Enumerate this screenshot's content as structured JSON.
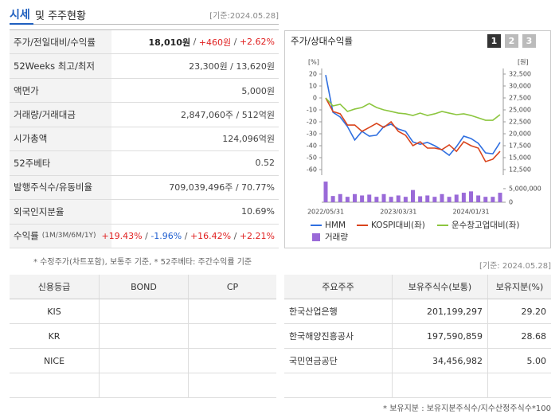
{
  "header": {
    "title": "시세",
    "title_rest": "및 주주현황",
    "date": "[기준:2024.05.28]"
  },
  "summary": {
    "rows": [
      {
        "label": "주가/전일대비/수익률",
        "parts": [
          {
            "text": "18,010원",
            "color": "#222",
            "bold": true
          },
          {
            "text": " / ",
            "color": "#555"
          },
          {
            "text": "+460원",
            "color": "#e02020"
          },
          {
            "text": " / ",
            "color": "#555"
          },
          {
            "text": "+2.62%",
            "color": "#e02020"
          }
        ]
      },
      {
        "label": "52Weeks 최고/최저",
        "parts": [
          {
            "text": "23,300원 / 13,620원",
            "color": "#444"
          }
        ]
      },
      {
        "label": "액면가",
        "parts": [
          {
            "text": "5,000원",
            "color": "#444"
          }
        ]
      },
      {
        "label": "거래량/거래대금",
        "parts": [
          {
            "text": "2,847,060주 / 512억원",
            "color": "#444"
          }
        ]
      },
      {
        "label": "시가총액",
        "parts": [
          {
            "text": "124,096억원",
            "color": "#444"
          }
        ]
      },
      {
        "label": "52주베타",
        "parts": [
          {
            "text": "0.52",
            "color": "#444"
          }
        ]
      },
      {
        "label": "발행주식수/유동비율",
        "parts": [
          {
            "text": "709,039,496주 / 70.77%",
            "color": "#444"
          }
        ]
      },
      {
        "label": "외국인지분율",
        "parts": [
          {
            "text": "10.69%",
            "color": "#444"
          }
        ]
      },
      {
        "label": "수익률",
        "label_note": "(1M/3M/6M/1Y)",
        "parts": [
          {
            "text": "+19.43%",
            "color": "#e02020"
          },
          {
            "text": " / ",
            "color": "#555"
          },
          {
            "text": "-1.96%",
            "color": "#1f5fd0"
          },
          {
            "text": " / ",
            "color": "#555"
          },
          {
            "text": "+16.42%",
            "color": "#e02020"
          },
          {
            "text": " / ",
            "color": "#555"
          },
          {
            "text": "+2.21%",
            "color": "#e02020"
          }
        ]
      }
    ],
    "note": "* 수정주가(차트포함), 보통주 기준, * 52주베타: 주간수익률 기준"
  },
  "chart_data": {
    "type": "line",
    "title": "주가/상대수익률",
    "buttons": [
      "1",
      "2",
      "3"
    ],
    "y_unit": "[%]",
    "y2_unit": "[원]",
    "categories": [
      "2022/05/31",
      null,
      null,
      null,
      null,
      null,
      null,
      null,
      null,
      null,
      "2023/03/31",
      null,
      null,
      null,
      null,
      null,
      null,
      null,
      null,
      null,
      "2024/01/31",
      null,
      null,
      null,
      null
    ],
    "ylim": [
      -60,
      20
    ],
    "yticks": [
      20,
      10,
      0,
      -10,
      -20,
      -30,
      -40,
      -50,
      -60
    ],
    "y2lim": [
      12500,
      32500
    ],
    "y2ticks": [
      {
        "value": 32500,
        "label": "32,500"
      },
      {
        "value": 30000,
        "label": "30,000"
      },
      {
        "value": 27500,
        "label": "27,500"
      },
      {
        "value": 25000,
        "label": "25,000"
      },
      {
        "value": 22500,
        "label": "22,500"
      },
      {
        "value": 20000,
        "label": "20,000"
      },
      {
        "value": 17500,
        "label": "17,500"
      },
      {
        "value": 15000,
        "label": "15,000"
      },
      {
        "value": 12500,
        "label": "12,500"
      }
    ],
    "volume_lim": [
      0,
      8500000
    ],
    "volume_ticks": [
      {
        "value": 5000000,
        "label": "5,000,000"
      },
      0
    ],
    "grid": false,
    "legend": "bottom",
    "series": [
      {
        "name": "HMM",
        "color": "#2f6fe0",
        "axis": "y2",
        "values": [
          32300,
          24500,
          23500,
          21500,
          18700,
          20500,
          19500,
          19700,
          21500,
          22000,
          21000,
          20500,
          18300,
          17800,
          18200,
          17500,
          16600,
          15500,
          17300,
          19500,
          19000,
          18000,
          16000,
          15800,
          18200
        ]
      },
      {
        "name": "KOSPI대비(좌)",
        "color": "#d9441c",
        "values": [
          0,
          -11.3,
          -13.3,
          -22.7,
          -22.7,
          -28,
          -24.7,
          -21.3,
          -24.7,
          -20,
          -28,
          -31.3,
          -40,
          -36.7,
          -42,
          -42,
          -43.3,
          -39.3,
          -44.7,
          -36.7,
          -40,
          -42,
          -53.3,
          -51.3,
          -44.7
        ]
      },
      {
        "name": "운수창고업대비(좌)",
        "color": "#8cc63f",
        "values": [
          0,
          -6.7,
          -5.3,
          -11.3,
          -9.3,
          -8,
          -4.7,
          -8,
          -10,
          -11.3,
          -12.7,
          -13.3,
          -14.7,
          -12.7,
          -14.7,
          -13.3,
          -11.3,
          -12.7,
          -14,
          -13.3,
          -14.7,
          -16.7,
          -18.7,
          -18.7,
          -14
        ]
      },
      {
        "name": "거래량",
        "color": "#9a6ad8",
        "axis": "volume",
        "type": "bar",
        "values": [
          7600000,
          2300000,
          3000000,
          2000000,
          3000000,
          2500000,
          2800000,
          2000000,
          3000000,
          2000000,
          2500000,
          2000000,
          4500000,
          2200000,
          2500000,
          2000000,
          3000000,
          2000000,
          2800000,
          3500000,
          4000000,
          2500000,
          2000000,
          2000000,
          3500000
        ]
      }
    ]
  },
  "date2": "[기준: 2024.05.28]",
  "credit": {
    "headers": [
      "신용등급",
      "BOND",
      "CP"
    ],
    "rows": [
      "KIS",
      "KR",
      "NICE"
    ]
  },
  "shareholders": {
    "headers": [
      "주요주주",
      "보유주식수(보통)",
      "보유지분(%)"
    ],
    "rows": [
      [
        "한국산업은행",
        "201,199,297",
        "29.20"
      ],
      [
        "한국해양진흥공사",
        "197,590,859",
        "28.68"
      ],
      [
        "국민연금공단",
        "34,456,982",
        "5.00"
      ]
    ],
    "note": "* 보유지분 : 보유지분주식수/지수산정주식수*100"
  }
}
